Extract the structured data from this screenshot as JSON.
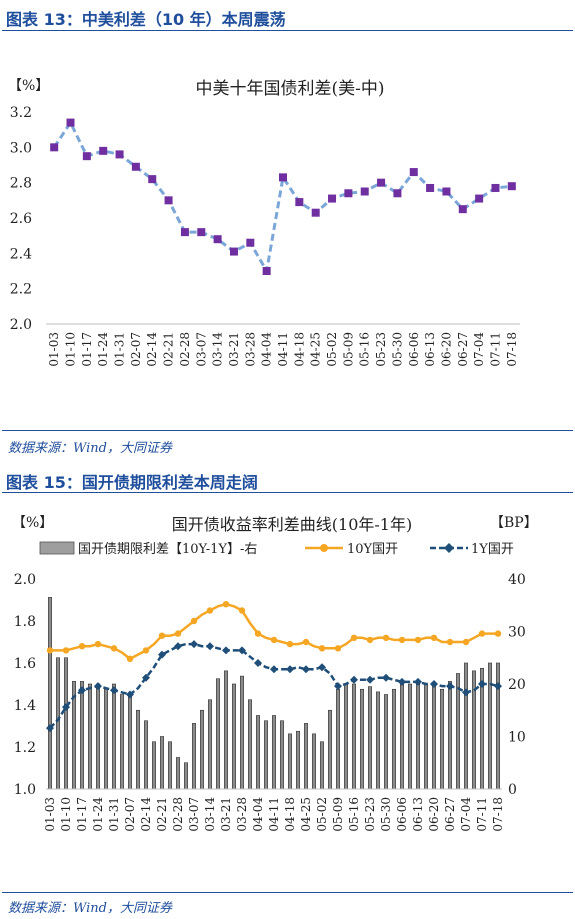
{
  "sections": [
    {
      "heading": "图表 13：中美利差（10 年）本周震荡",
      "source": "数据来源：Wind，大同证券"
    },
    {
      "heading": "图表 15：国开债期限利差本周走阔",
      "source": "数据来源：Wind，大同证券"
    }
  ],
  "chart_data": [
    {
      "type": "line",
      "title": "中美十年国债利差(美-中)",
      "y_unit_label": "【%】",
      "ylim": [
        2.0,
        3.2
      ],
      "yticks": [
        "2.0",
        "2.2",
        "2.4",
        "2.6",
        "2.8",
        "3.0",
        "3.2"
      ],
      "categories": [
        "01-03",
        "01-10",
        "01-17",
        "01-24",
        "01-31",
        "02-07",
        "02-14",
        "02-21",
        "02-28",
        "03-07",
        "03-14",
        "03-21",
        "03-28",
        "04-04",
        "04-11",
        "04-18",
        "04-25",
        "05-02",
        "05-09",
        "05-16",
        "05-23",
        "05-30",
        "06-06",
        "06-13",
        "06-20",
        "06-27",
        "07-04",
        "07-11",
        "07-18"
      ],
      "x_tick_labels": [
        "01-03",
        "01-10",
        "01-17",
        "01-24",
        "01-31",
        "02-07",
        "02-14",
        "02-21",
        "02-28",
        "03-07",
        "03-14",
        "03-21",
        "03-28",
        "04-04",
        "04-11",
        "04-18",
        "04-25",
        "05-02",
        "05-09",
        "05-16",
        "05-23",
        "05-30",
        "06-06",
        "06-13",
        "06-20",
        "06-27",
        "07-04",
        "07-11",
        "07-18"
      ],
      "series": [
        {
          "values": [
            3.0,
            3.14,
            2.95,
            2.98,
            2.96,
            2.89,
            2.82,
            2.7,
            2.52,
            2.52,
            2.48,
            2.41,
            2.46,
            2.3,
            2.83,
            2.69,
            2.63,
            2.71,
            2.74,
            2.75,
            2.8,
            2.74,
            2.86,
            2.77,
            2.75,
            2.65,
            2.71,
            2.77,
            2.78
          ],
          "color": "#7aa6d8",
          "marker_color": "#6f2fa0"
        }
      ]
    },
    {
      "type": "bar+line",
      "title": "国开债收益率利差曲线(10年-1年)",
      "y_unit_label": "【%】",
      "y2_unit_label": "【BP】",
      "ylim": [
        1.0,
        2.0
      ],
      "yticks": [
        "1.0",
        "1.2",
        "1.4",
        "1.6",
        "1.8",
        "2.0"
      ],
      "y2lim": [
        0,
        40
      ],
      "y2ticks": [
        "0",
        "10",
        "20",
        "30",
        "40"
      ],
      "categories": [
        "01-03",
        "01-07",
        "01-10",
        "01-14",
        "01-17",
        "01-21",
        "01-24",
        "01-28",
        "01-31",
        "02-04",
        "02-07",
        "02-11",
        "02-14",
        "02-18",
        "02-21",
        "02-25",
        "02-28",
        "03-03",
        "03-07",
        "03-10",
        "03-14",
        "03-17",
        "03-21",
        "03-24",
        "03-28",
        "03-31",
        "04-04",
        "04-07",
        "04-11",
        "04-14",
        "04-18",
        "04-21",
        "04-25",
        "04-28",
        "05-02",
        "05-06",
        "05-09",
        "05-13",
        "05-16",
        "05-20",
        "05-23",
        "05-27",
        "05-30",
        "06-03",
        "06-06",
        "06-10",
        "06-13",
        "06-17",
        "06-20",
        "06-24",
        "06-27",
        "07-01",
        "07-04",
        "07-08",
        "07-11",
        "07-15",
        "07-18"
      ],
      "x_tick_labels": [
        "01-03",
        "01-10",
        "01-17",
        "01-24",
        "01-31",
        "02-07",
        "02-14",
        "02-21",
        "02-28",
        "03-07",
        "03-14",
        "03-21",
        "03-28",
        "04-04",
        "04-11",
        "04-18",
        "04-25",
        "05-02",
        "05-09",
        "05-16",
        "05-23",
        "05-30",
        "06-06",
        "06-13",
        "06-20",
        "06-27",
        "07-04",
        "07-11",
        "07-18"
      ],
      "legend": [
        "国开债期限利差【10Y-1Y】-右",
        "10Y国开",
        "1Y国开"
      ],
      "series": [
        {
          "name": "国开债期限利差【10Y-1Y】-右",
          "type": "bar",
          "axis": "right",
          "color": "#7f7f7f",
          "values": [
            36.5,
            25,
            25,
            20.5,
            20.5,
            20,
            20,
            19,
            20,
            18,
            18,
            15,
            13,
            9,
            10,
            9,
            6,
            5,
            12.5,
            15,
            17,
            21,
            22.5,
            20,
            21.5,
            17,
            14,
            13,
            14,
            13,
            10.5,
            11,
            12.5,
            10.5,
            9,
            15,
            19,
            20,
            20,
            19,
            19.5,
            18.5,
            18,
            19,
            20,
            20,
            20,
            20,
            19.5,
            19,
            20.5,
            22,
            24,
            22.5,
            23,
            24,
            24
          ]
        },
        {
          "name": "10Y国开",
          "type": "line",
          "axis": "left",
          "color": "#f5a623",
          "values": [
            1.66,
            1.66,
            1.66,
            1.67,
            1.68,
            1.68,
            1.69,
            1.68,
            1.67,
            1.65,
            1.62,
            1.64,
            1.66,
            1.69,
            1.73,
            1.73,
            1.74,
            1.77,
            1.8,
            1.83,
            1.85,
            1.87,
            1.88,
            1.87,
            1.85,
            1.79,
            1.74,
            1.72,
            1.71,
            1.7,
            1.69,
            1.69,
            1.7,
            1.68,
            1.67,
            1.67,
            1.67,
            1.69,
            1.72,
            1.72,
            1.71,
            1.72,
            1.72,
            1.71,
            1.71,
            1.71,
            1.71,
            1.72,
            1.72,
            1.7,
            1.7,
            1.7,
            1.7,
            1.72,
            1.74,
            1.74,
            1.74
          ]
        },
        {
          "name": "1Y国开",
          "type": "line",
          "axis": "left",
          "color": "#1f4e79",
          "values": [
            1.29,
            1.33,
            1.39,
            1.44,
            1.47,
            1.48,
            1.49,
            1.48,
            1.47,
            1.46,
            1.45,
            1.48,
            1.53,
            1.58,
            1.64,
            1.66,
            1.68,
            1.69,
            1.69,
            1.68,
            1.68,
            1.67,
            1.66,
            1.66,
            1.66,
            1.63,
            1.6,
            1.58,
            1.57,
            1.57,
            1.57,
            1.58,
            1.57,
            1.57,
            1.58,
            1.55,
            1.49,
            1.5,
            1.52,
            1.52,
            1.52,
            1.53,
            1.53,
            1.52,
            1.51,
            1.51,
            1.51,
            1.5,
            1.5,
            1.49,
            1.49,
            1.48,
            1.46,
            1.47,
            1.5,
            1.5,
            1.49
          ]
        }
      ]
    }
  ]
}
